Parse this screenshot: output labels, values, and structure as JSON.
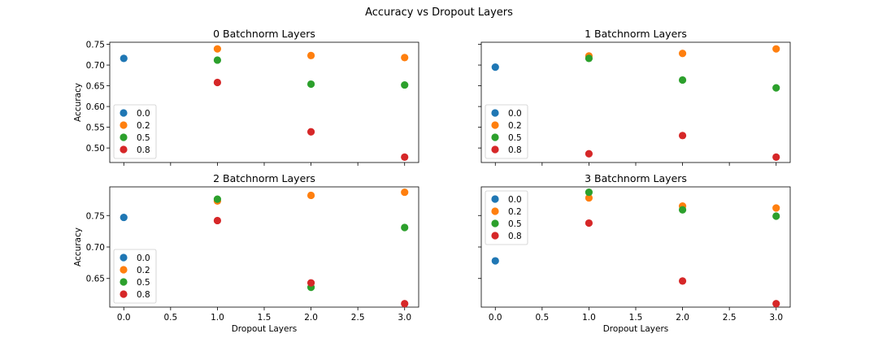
{
  "figure": {
    "suptitle": "Accuracy vs Dropout Layers"
  },
  "chart_data": [
    {
      "type": "scatter",
      "title": "0 Batchnorm Layers",
      "xlabel": "",
      "ylabel": "Accuracy",
      "xlim": [
        -0.15,
        3.15
      ],
      "ylim": [
        0.465,
        0.755
      ],
      "xticks": [
        0.0,
        0.5,
        1.0,
        1.5,
        2.0,
        2.5,
        3.0
      ],
      "xticklabels": [],
      "yticks": [
        0.5,
        0.55,
        0.6,
        0.65,
        0.7,
        0.75
      ],
      "yticklabels": [
        "0.50",
        "0.55",
        "0.60",
        "0.65",
        "0.70",
        "0.75"
      ],
      "legend": "lower-left",
      "series": [
        {
          "name": "0.0",
          "color": "#1f77b4",
          "points": [
            [
              0,
              0.716
            ]
          ]
        },
        {
          "name": "0.2",
          "color": "#ff7f0e",
          "points": [
            [
              1,
              0.739
            ],
            [
              2,
              0.723
            ],
            [
              3,
              0.718
            ]
          ]
        },
        {
          "name": "0.5",
          "color": "#2ca02c",
          "points": [
            [
              1,
              0.712
            ],
            [
              2,
              0.654
            ],
            [
              3,
              0.652
            ]
          ]
        },
        {
          "name": "0.8",
          "color": "#d62728",
          "points": [
            [
              1,
              0.658
            ],
            [
              2,
              0.539
            ],
            [
              3,
              0.478
            ]
          ]
        }
      ]
    },
    {
      "type": "scatter",
      "title": "1 Batchnorm Layers",
      "xlabel": "",
      "ylabel": "",
      "xlim": [
        -0.15,
        3.15
      ],
      "ylim": [
        0.465,
        0.755
      ],
      "xticks": [
        0.0,
        0.5,
        1.0,
        1.5,
        2.0,
        2.5,
        3.0
      ],
      "xticklabels": [],
      "yticks": [
        0.5,
        0.55,
        0.6,
        0.65,
        0.7,
        0.75
      ],
      "yticklabels": [],
      "legend": "lower-left",
      "series": [
        {
          "name": "0.0",
          "color": "#1f77b4",
          "points": [
            [
              0,
              0.695
            ]
          ]
        },
        {
          "name": "0.2",
          "color": "#ff7f0e",
          "points": [
            [
              1,
              0.722
            ],
            [
              2,
              0.728
            ],
            [
              3,
              0.739
            ]
          ]
        },
        {
          "name": "0.5",
          "color": "#2ca02c",
          "points": [
            [
              1,
              0.716
            ],
            [
              2,
              0.664
            ],
            [
              3,
              0.645
            ]
          ]
        },
        {
          "name": "0.8",
          "color": "#d62728",
          "points": [
            [
              1,
              0.486
            ],
            [
              2,
              0.53
            ],
            [
              3,
              0.478
            ]
          ]
        }
      ]
    },
    {
      "type": "scatter",
      "title": "2 Batchnorm Layers",
      "xlabel": "Dropout Layers",
      "ylabel": "Accuracy",
      "xlim": [
        -0.15,
        3.15
      ],
      "ylim": [
        0.6045,
        0.7955
      ],
      "xticks": [
        0.0,
        0.5,
        1.0,
        1.5,
        2.0,
        2.5,
        3.0
      ],
      "xticklabels": [
        "0.0",
        "0.5",
        "1.0",
        "1.5",
        "2.0",
        "2.5",
        "3.0"
      ],
      "yticks": [
        0.65,
        0.7,
        0.75
      ],
      "yticklabels": [
        "0.65",
        "0.70",
        "0.75"
      ],
      "legend": "lower-left",
      "series": [
        {
          "name": "0.0",
          "color": "#1f77b4",
          "points": [
            [
              0,
              0.747
            ]
          ]
        },
        {
          "name": "0.2",
          "color": "#ff7f0e",
          "points": [
            [
              1,
              0.773
            ],
            [
              2,
              0.782
            ],
            [
              3,
              0.787
            ]
          ]
        },
        {
          "name": "0.5",
          "color": "#2ca02c",
          "points": [
            [
              1,
              0.776
            ],
            [
              2,
              0.636
            ],
            [
              3,
              0.731
            ]
          ]
        },
        {
          "name": "0.8",
          "color": "#d62728",
          "points": [
            [
              1,
              0.742
            ],
            [
              2,
              0.643
            ],
            [
              3,
              0.61
            ]
          ]
        }
      ]
    },
    {
      "type": "scatter",
      "title": "3 Batchnorm Layers",
      "xlabel": "Dropout Layers",
      "ylabel": "",
      "xlim": [
        -0.15,
        3.15
      ],
      "ylim": [
        0.6045,
        0.7955
      ],
      "xticks": [
        0.0,
        0.5,
        1.0,
        1.5,
        2.0,
        2.5,
        3.0
      ],
      "xticklabels": [
        "0.0",
        "0.5",
        "1.0",
        "1.5",
        "2.0",
        "2.5",
        "3.0"
      ],
      "yticks": [
        0.65,
        0.7,
        0.75
      ],
      "yticklabels": [],
      "legend": "upper-left",
      "series": [
        {
          "name": "0.0",
          "color": "#1f77b4",
          "points": [
            [
              0,
              0.678
            ]
          ]
        },
        {
          "name": "0.2",
          "color": "#ff7f0e",
          "points": [
            [
              1,
              0.778
            ],
            [
              2,
              0.765
            ],
            [
              3,
              0.762
            ]
          ]
        },
        {
          "name": "0.5",
          "color": "#2ca02c",
          "points": [
            [
              1,
              0.787
            ],
            [
              2,
              0.759
            ],
            [
              3,
              0.749
            ]
          ]
        },
        {
          "name": "0.8",
          "color": "#d62728",
          "points": [
            [
              1,
              0.738
            ],
            [
              2,
              0.646
            ],
            [
              3,
              0.61
            ]
          ]
        }
      ]
    }
  ]
}
